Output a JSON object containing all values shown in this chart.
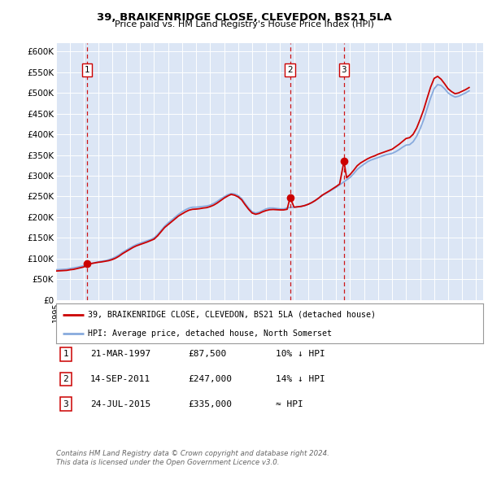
{
  "title": "39, BRAIKENRIDGE CLOSE, CLEVEDON, BS21 5LA",
  "subtitle": "Price paid vs. HM Land Registry's House Price Index (HPI)",
  "bg_color": "#dce6f5",
  "fig_bg": "#ffffff",
  "ylim": [
    0,
    620000
  ],
  "yticks": [
    0,
    50000,
    100000,
    150000,
    200000,
    250000,
    300000,
    350000,
    400000,
    450000,
    500000,
    550000,
    600000
  ],
  "ytick_labels": [
    "£0",
    "£50K",
    "£100K",
    "£150K",
    "£200K",
    "£250K",
    "£300K",
    "£350K",
    "£400K",
    "£450K",
    "£500K",
    "£550K",
    "£600K"
  ],
  "xlim_start": 1995.0,
  "xlim_end": 2025.5,
  "sale_dates": [
    1997.22,
    2011.71,
    2015.56
  ],
  "sale_prices": [
    87500,
    247000,
    335000
  ],
  "sale_labels": [
    "1",
    "2",
    "3"
  ],
  "red_line_color": "#cc0000",
  "blue_line_color": "#88aadd",
  "sale_dot_color": "#cc0000",
  "vline_color": "#cc0000",
  "legend_label_red": "39, BRAIKENRIDGE CLOSE, CLEVEDON, BS21 5LA (detached house)",
  "legend_label_blue": "HPI: Average price, detached house, North Somerset",
  "table_data": [
    [
      "1",
      "21-MAR-1997",
      "£87,500",
      "10% ↓ HPI"
    ],
    [
      "2",
      "14-SEP-2011",
      "£247,000",
      "14% ↓ HPI"
    ],
    [
      "3",
      "24-JUL-2015",
      "£335,000",
      "≈ HPI"
    ]
  ],
  "footer_line1": "Contains HM Land Registry data © Crown copyright and database right 2024.",
  "footer_line2": "This data is licensed under the Open Government Licence v3.0.",
  "hpi_years": [
    1995.0,
    1995.25,
    1995.5,
    1995.75,
    1996.0,
    1996.25,
    1996.5,
    1996.75,
    1997.0,
    1997.25,
    1997.5,
    1997.75,
    1998.0,
    1998.25,
    1998.5,
    1998.75,
    1999.0,
    1999.25,
    1999.5,
    1999.75,
    2000.0,
    2000.25,
    2000.5,
    2000.75,
    2001.0,
    2001.25,
    2001.5,
    2001.75,
    2002.0,
    2002.25,
    2002.5,
    2002.75,
    2003.0,
    2003.25,
    2003.5,
    2003.75,
    2004.0,
    2004.25,
    2004.5,
    2004.75,
    2005.0,
    2005.25,
    2005.5,
    2005.75,
    2006.0,
    2006.25,
    2006.5,
    2006.75,
    2007.0,
    2007.25,
    2007.5,
    2007.75,
    2008.0,
    2008.25,
    2008.5,
    2008.75,
    2009.0,
    2009.25,
    2009.5,
    2009.75,
    2010.0,
    2010.25,
    2010.5,
    2010.75,
    2011.0,
    2011.25,
    2011.5,
    2011.75,
    2012.0,
    2012.25,
    2012.5,
    2012.75,
    2013.0,
    2013.25,
    2013.5,
    2013.75,
    2014.0,
    2014.25,
    2014.5,
    2014.75,
    2015.0,
    2015.25,
    2015.5,
    2015.75,
    2016.0,
    2016.25,
    2016.5,
    2016.75,
    2017.0,
    2017.25,
    2017.5,
    2017.75,
    2018.0,
    2018.25,
    2018.5,
    2018.75,
    2019.0,
    2019.25,
    2019.5,
    2019.75,
    2020.0,
    2020.25,
    2020.5,
    2020.75,
    2021.0,
    2021.25,
    2021.5,
    2021.75,
    2022.0,
    2022.25,
    2022.5,
    2022.75,
    2023.0,
    2023.25,
    2023.5,
    2023.75,
    2024.0,
    2024.25,
    2024.5
  ],
  "hpi_values": [
    73000,
    73500,
    74000,
    74500,
    76000,
    77500,
    79000,
    81000,
    83000,
    86000,
    88000,
    90000,
    92000,
    93500,
    95000,
    97000,
    100000,
    104000,
    109000,
    115000,
    120000,
    125000,
    130000,
    134000,
    137000,
    140000,
    143000,
    146000,
    150000,
    158000,
    168000,
    178000,
    186000,
    193000,
    200000,
    207000,
    213000,
    218000,
    222000,
    224000,
    224000,
    225000,
    226000,
    227000,
    229000,
    233000,
    238000,
    244000,
    249000,
    254000,
    257000,
    256000,
    252000,
    245000,
    233000,
    222000,
    213000,
    210000,
    212000,
    216000,
    220000,
    222000,
    222000,
    221000,
    220000,
    220000,
    222000,
    224000,
    224000,
    225000,
    226000,
    228000,
    231000,
    235000,
    240000,
    246000,
    252000,
    257000,
    262000,
    267000,
    272000,
    278000,
    284000,
    290000,
    296000,
    305000,
    315000,
    322000,
    328000,
    334000,
    338000,
    341000,
    344000,
    347000,
    350000,
    352000,
    354000,
    358000,
    363000,
    369000,
    374000,
    375000,
    382000,
    395000,
    413000,
    435000,
    462000,
    488000,
    510000,
    520000,
    518000,
    510000,
    500000,
    494000,
    490000,
    492000,
    496000,
    500000,
    505000
  ],
  "price_years": [
    1995.0,
    1995.25,
    1995.5,
    1995.75,
    1996.0,
    1996.25,
    1996.5,
    1996.75,
    1997.0,
    1997.22,
    1997.5,
    1997.75,
    1998.0,
    1998.25,
    1998.5,
    1998.75,
    1999.0,
    1999.25,
    1999.5,
    1999.75,
    2000.0,
    2000.25,
    2000.5,
    2000.75,
    2001.0,
    2001.25,
    2001.5,
    2001.75,
    2002.0,
    2002.25,
    2002.5,
    2002.75,
    2003.0,
    2003.25,
    2003.5,
    2003.75,
    2004.0,
    2004.25,
    2004.5,
    2004.75,
    2005.0,
    2005.25,
    2005.5,
    2005.75,
    2006.0,
    2006.25,
    2006.5,
    2006.75,
    2007.0,
    2007.25,
    2007.5,
    2007.75,
    2008.0,
    2008.25,
    2008.5,
    2008.75,
    2009.0,
    2009.25,
    2009.5,
    2009.75,
    2010.0,
    2010.25,
    2010.5,
    2010.75,
    2011.0,
    2011.25,
    2011.5,
    2011.71,
    2012.0,
    2012.25,
    2012.5,
    2012.75,
    2013.0,
    2013.25,
    2013.5,
    2013.75,
    2014.0,
    2014.25,
    2014.5,
    2014.75,
    2015.0,
    2015.25,
    2015.56,
    2015.75,
    2016.0,
    2016.25,
    2016.5,
    2016.75,
    2017.0,
    2017.25,
    2017.5,
    2017.75,
    2018.0,
    2018.25,
    2018.5,
    2018.75,
    2019.0,
    2019.25,
    2019.5,
    2019.75,
    2020.0,
    2020.25,
    2020.5,
    2020.75,
    2021.0,
    2021.25,
    2021.5,
    2021.75,
    2022.0,
    2022.25,
    2022.5,
    2022.75,
    2023.0,
    2023.25,
    2023.5,
    2023.75,
    2024.0,
    2024.25,
    2024.5
  ],
  "price_values": [
    70000,
    70500,
    71000,
    71500,
    73000,
    74000,
    76000,
    78000,
    80000,
    87500,
    88000,
    89500,
    91000,
    92000,
    93500,
    95000,
    97500,
    101000,
    106000,
    112000,
    117000,
    122000,
    127000,
    131000,
    134000,
    137000,
    140000,
    143500,
    147000,
    155000,
    165000,
    175000,
    182000,
    189000,
    196000,
    203000,
    208000,
    213000,
    217000,
    219000,
    219500,
    220500,
    222000,
    223000,
    225500,
    229000,
    234000,
    240000,
    246000,
    251000,
    255000,
    253000,
    249000,
    242000,
    230000,
    219000,
    210000,
    207000,
    209000,
    213000,
    216000,
    218000,
    218500,
    218000,
    217500,
    217500,
    219000,
    247000,
    224000,
    225000,
    226000,
    228000,
    231000,
    235000,
    240000,
    246000,
    253000,
    258000,
    263000,
    268500,
    274000,
    280000,
    335000,
    295000,
    303000,
    313000,
    324000,
    331000,
    336000,
    341000,
    345000,
    348000,
    352000,
    355000,
    358000,
    361000,
    364000,
    370000,
    376000,
    383000,
    390000,
    392000,
    400000,
    415000,
    436000,
    459000,
    487000,
    514000,
    535000,
    540000,
    533000,
    522000,
    510000,
    503000,
    498000,
    500000,
    504000,
    508000,
    513000
  ]
}
